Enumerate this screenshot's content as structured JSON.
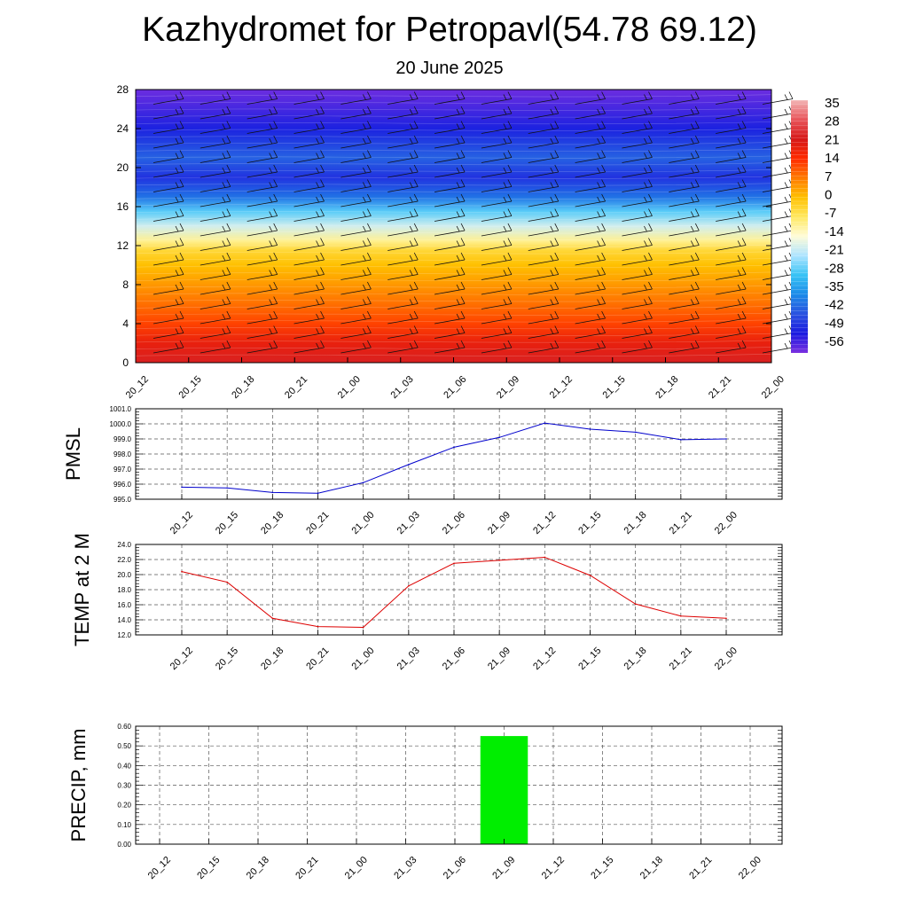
{
  "header": {
    "title": "Kazhydromet for Petropavl(54.78 69.12)",
    "subtitle": "20 June 2025"
  },
  "chart_data": [
    {
      "type": "heatmap",
      "id": "profile",
      "y_ticks": [
        "0",
        "4",
        "8",
        "12",
        "16",
        "20",
        "24",
        "28"
      ],
      "ylim": [
        0,
        28
      ],
      "x_ticks": [
        "20_12",
        "20_15",
        "20_18",
        "20_21",
        "21_00",
        "21_03",
        "21_06",
        "21_09",
        "21_12",
        "21_15",
        "21_18",
        "21_21",
        "22_00"
      ],
      "colorbar_labels": [
        "35",
        "28",
        "21",
        "14",
        "7",
        "0",
        "-7",
        "-14",
        "-21",
        "-28",
        "-35",
        "-42",
        "-49",
        "-56"
      ],
      "colorbar_colors": [
        "#f2b4b4",
        "#e8545a",
        "#d61818",
        "#ff2b00",
        "#ff7a00",
        "#ffc000",
        "#ffe860",
        "#fffcd8",
        "#aee4ff",
        "#37c3f5",
        "#1b8ae8",
        "#2a52e0",
        "#1a1ae0",
        "#7a30e0"
      ],
      "level_temperature": [
        {
          "level": 0,
          "t": 22
        },
        {
          "level": 2,
          "t": 18
        },
        {
          "level": 4,
          "t": 12
        },
        {
          "level": 6,
          "t": 8
        },
        {
          "level": 8,
          "t": 4
        },
        {
          "level": 10,
          "t": 0
        },
        {
          "level": 11.5,
          "t": -4
        },
        {
          "level": 12.5,
          "t": -10
        },
        {
          "level": 14,
          "t": -18
        },
        {
          "level": 15.5,
          "t": -26
        },
        {
          "level": 17,
          "t": -38
        },
        {
          "level": 19,
          "t": -46
        },
        {
          "level": 21,
          "t": -40
        },
        {
          "level": 24,
          "t": -48
        },
        {
          "level": 28,
          "t": -55
        }
      ]
    },
    {
      "type": "line",
      "id": "pmsl",
      "ylabel": "PMSL",
      "ylim": [
        995,
        1001
      ],
      "y_ticks": [
        "995.0",
        "996.0",
        "997.0",
        "998.0",
        "999.0",
        "1000.0",
        "1001.0"
      ],
      "x_ticks": [
        "20_12",
        "20_15",
        "20_18",
        "20_21",
        "21_00",
        "21_03",
        "21_06",
        "21_09",
        "21_12",
        "21_15",
        "21_18",
        "21_21",
        "22_00"
      ],
      "values": [
        995.8,
        995.75,
        995.45,
        995.4,
        996.1,
        997.3,
        998.45,
        999.1,
        1000.05,
        999.65,
        999.45,
        998.95,
        999.0
      ],
      "color": "#0000cc"
    },
    {
      "type": "line",
      "id": "temp",
      "ylabel": "TEMP at 2 M",
      "ylim": [
        12,
        24
      ],
      "y_ticks": [
        "12.0",
        "14.0",
        "16.0",
        "18.0",
        "20.0",
        "22.0",
        "24.0"
      ],
      "x_ticks": [
        "20_12",
        "20_15",
        "20_18",
        "20_21",
        "21_00",
        "21_03",
        "21_06",
        "21_09",
        "21_12",
        "21_15",
        "21_18",
        "21_21",
        "22_00"
      ],
      "values": [
        20.4,
        19.0,
        14.2,
        13.1,
        13.0,
        18.5,
        21.5,
        21.9,
        22.3,
        19.9,
        16.1,
        14.5,
        14.2
      ],
      "color": "#dd0000"
    },
    {
      "type": "bar",
      "id": "precip",
      "ylabel": "PRECIP, mm",
      "ylim": [
        0,
        0.6
      ],
      "y_ticks": [
        "0.00",
        "0.10",
        "0.20",
        "0.30",
        "0.40",
        "0.50",
        "0.60"
      ],
      "x_ticks": [
        "20_12",
        "20_15",
        "20_18",
        "20_21",
        "21_00",
        "21_03",
        "21_06",
        "21_09",
        "21_12",
        "21_15",
        "21_18",
        "21_21",
        "22_00"
      ],
      "values": [
        0,
        0,
        0,
        0,
        0,
        0,
        0,
        0.55,
        0,
        0,
        0,
        0,
        0
      ],
      "color": "#00ee00"
    }
  ]
}
